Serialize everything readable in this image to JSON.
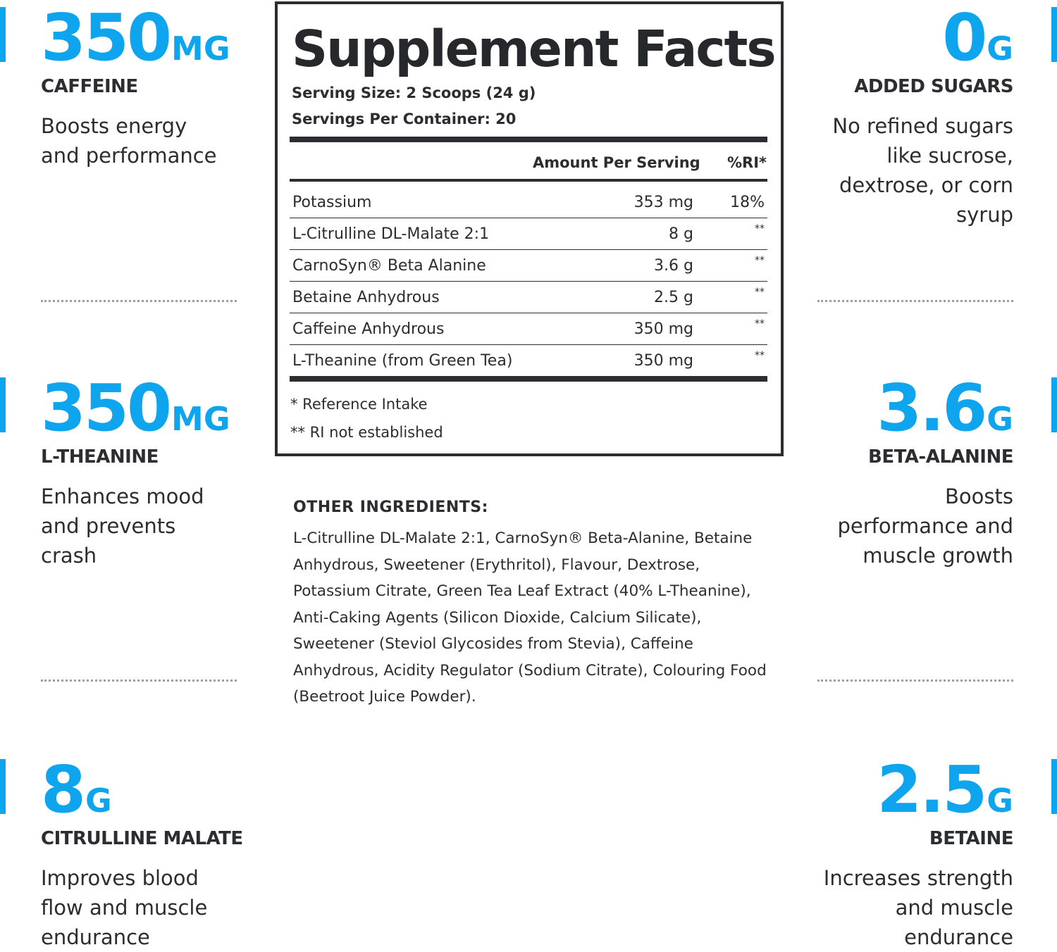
{
  "stats": [
    {
      "value": "350",
      "unit": "MG",
      "label": "CAFFEINE",
      "desc": "Boosts energy and performance"
    },
    {
      "value": "350",
      "unit": "MG",
      "label": "L-THEANINE",
      "desc": "Enhances mood and prevents crash"
    },
    {
      "value": "8",
      "unit": "G",
      "label": "CITRULLINE MALATE",
      "desc": "Improves blood flow and muscle endurance"
    },
    {
      "value": "0",
      "unit": "G",
      "label": "ADDED SUGARS",
      "desc": "No refined sugars like sucrose, dextrose, or corn syrup"
    },
    {
      "value": "3.6",
      "unit": "G",
      "label": "BETA-ALANINE",
      "desc": "Boosts performance and muscle growth"
    },
    {
      "value": "2.5",
      "unit": "G",
      "label": "BETAINE",
      "desc": "Increases strength and muscle endurance"
    }
  ],
  "facts": {
    "title": "Supplement Facts",
    "serving_size": "Serving Size: 2 Scoops (24 g)",
    "servings_per_container": "Servings Per Container: 20",
    "col_amount": "Amount Per Serving",
    "col_ri": "%RI*",
    "rows": [
      {
        "name": "Potassium",
        "amount": "353 mg",
        "ri": "18%"
      },
      {
        "name": "L-Citrulline DL-Malate 2:1",
        "amount": "8 g",
        "ri": "**"
      },
      {
        "name": "CarnoSyn® Beta Alanine",
        "amount": "3.6 g",
        "ri": "**"
      },
      {
        "name": "Betaine Anhydrous",
        "amount": "2.5 g",
        "ri": "**"
      },
      {
        "name": "Caffeine Anhydrous",
        "amount": "350 mg",
        "ri": "**"
      },
      {
        "name": "L-Theanine (from Green Tea)",
        "amount": "350 mg",
        "ri": "**"
      }
    ],
    "note_1": "* Reference Intake",
    "note_2": "** RI not established"
  },
  "other_ingredients": {
    "title": "OTHER INGREDIENTS:",
    "text": "L-Citrulline DL-Malate 2:1, CarnoSyn® Beta-Alanine, Betaine Anhydrous, Sweetener (Erythritol), Flavour, Dextrose, Potassium Citrate, Green Tea Leaf Extract (40% L-Theanine), Anti-Caking Agents (Silicon Dioxide, Calcium Silicate), Sweetener (Steviol Glycosides from Stevia), Caffeine Anhydrous, Acidity Regulator (Sodium Citrate), Colouring Food (Beetroot Juice Powder)."
  },
  "colors": {
    "accent": "#0ea5ee",
    "text": "#2b2d31"
  }
}
